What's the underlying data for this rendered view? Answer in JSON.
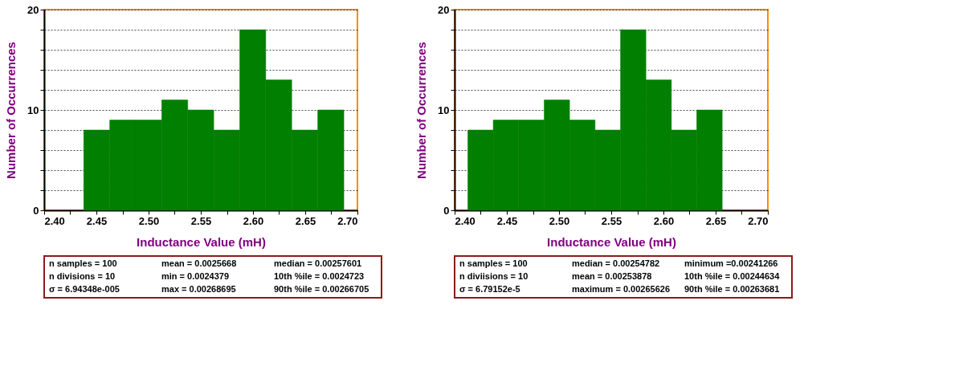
{
  "chart_data": [
    {
      "type": "histogram",
      "xlabel": "Inductance Value (mH)",
      "ylabel": "Number of Occurrences",
      "color": "#007f00",
      "bins": [
        2.4379,
        2.4628,
        2.4877,
        2.5126,
        2.5375,
        2.5624,
        2.5873,
        2.6122,
        2.6371,
        2.662,
        2.687
      ],
      "values": [
        8,
        9,
        9,
        11,
        10,
        8,
        18,
        13,
        8,
        10
      ],
      "xlim": [
        2.4,
        2.7
      ],
      "xticks": [
        {
          "value": 2.4,
          "label": "2.40"
        },
        {
          "value": 2.425,
          "label": null
        },
        {
          "value": 2.45,
          "label": "2.45"
        },
        {
          "value": 2.475,
          "label": null
        },
        {
          "value": 2.5,
          "label": "2.50"
        },
        {
          "value": 2.525,
          "label": null
        },
        {
          "value": 2.55,
          "label": "2.55"
        },
        {
          "value": 2.575,
          "label": null
        },
        {
          "value": 2.6,
          "label": "2.60"
        },
        {
          "value": 2.625,
          "label": null
        },
        {
          "value": 2.65,
          "label": "2.65"
        },
        {
          "value": 2.675,
          "label": null
        },
        {
          "value": 2.7,
          "label": "2.70"
        }
      ],
      "ylim": [
        0,
        20
      ],
      "yticks": [
        0,
        {
          "value": 2,
          "label": null
        },
        {
          "value": 4,
          "label": null
        },
        {
          "value": 6,
          "label": null
        },
        {
          "value": 8,
          "label": null
        },
        10,
        {
          "value": 12,
          "label": null
        },
        {
          "value": 14,
          "label": null
        },
        {
          "value": 16,
          "label": null
        },
        {
          "value": 18,
          "label": null
        },
        20
      ],
      "grid": "y",
      "annotations": [
        "n samples = 100",
        "mean = 0.0025668",
        "median = 0.00257601",
        "n divisions = 10",
        "min = 0.0024379",
        "10th %ile = 0.0024723",
        "σ = 6.94348e-005",
        "max = 0.00268695",
        "90th %ile = 0.00266705"
      ]
    },
    {
      "type": "histogram",
      "xlabel": "Inductance Value (mH)",
      "ylabel": "Number of Occurrences",
      "color": "#007f00",
      "bins": [
        2.4127,
        2.437,
        2.4614,
        2.4858,
        2.5101,
        2.5345,
        2.5589,
        2.5832,
        2.6076,
        2.6319,
        2.6563
      ],
      "values": [
        8,
        9,
        9,
        11,
        9,
        8,
        18,
        13,
        8,
        10
      ],
      "xlim": [
        2.4,
        2.7
      ],
      "xticks": [
        {
          "value": 2.4,
          "label": "2.40"
        },
        {
          "value": 2.425,
          "label": null
        },
        {
          "value": 2.45,
          "label": "2.45"
        },
        {
          "value": 2.475,
          "label": null
        },
        {
          "value": 2.5,
          "label": "2.50"
        },
        {
          "value": 2.525,
          "label": null
        },
        {
          "value": 2.55,
          "label": "2.55"
        },
        {
          "value": 2.575,
          "label": null
        },
        {
          "value": 2.6,
          "label": "2.60"
        },
        {
          "value": 2.625,
          "label": null
        },
        {
          "value": 2.65,
          "label": "2.65"
        },
        {
          "value": 2.675,
          "label": null
        },
        {
          "value": 2.7,
          "label": "2.70"
        }
      ],
      "ylim": [
        0,
        20
      ],
      "yticks": [
        0,
        {
          "value": 2,
          "label": null
        },
        {
          "value": 4,
          "label": null
        },
        {
          "value": 6,
          "label": null
        },
        {
          "value": 8,
          "label": null
        },
        10,
        {
          "value": 12,
          "label": null
        },
        {
          "value": 14,
          "label": null
        },
        {
          "value": 16,
          "label": null
        },
        {
          "value": 18,
          "label": null
        },
        20
      ],
      "grid": "y",
      "annotations": [
        "n samples = 100",
        "median = 0.00254782",
        "minimum =0.00241266",
        "n diviisions = 10",
        "mean = 0.00253878",
        "10th %ile = 0.00244634",
        "σ = 6.79152e-5",
        "maximum = 0.00265626",
        "90th %ile = 0.00263681"
      ]
    }
  ]
}
